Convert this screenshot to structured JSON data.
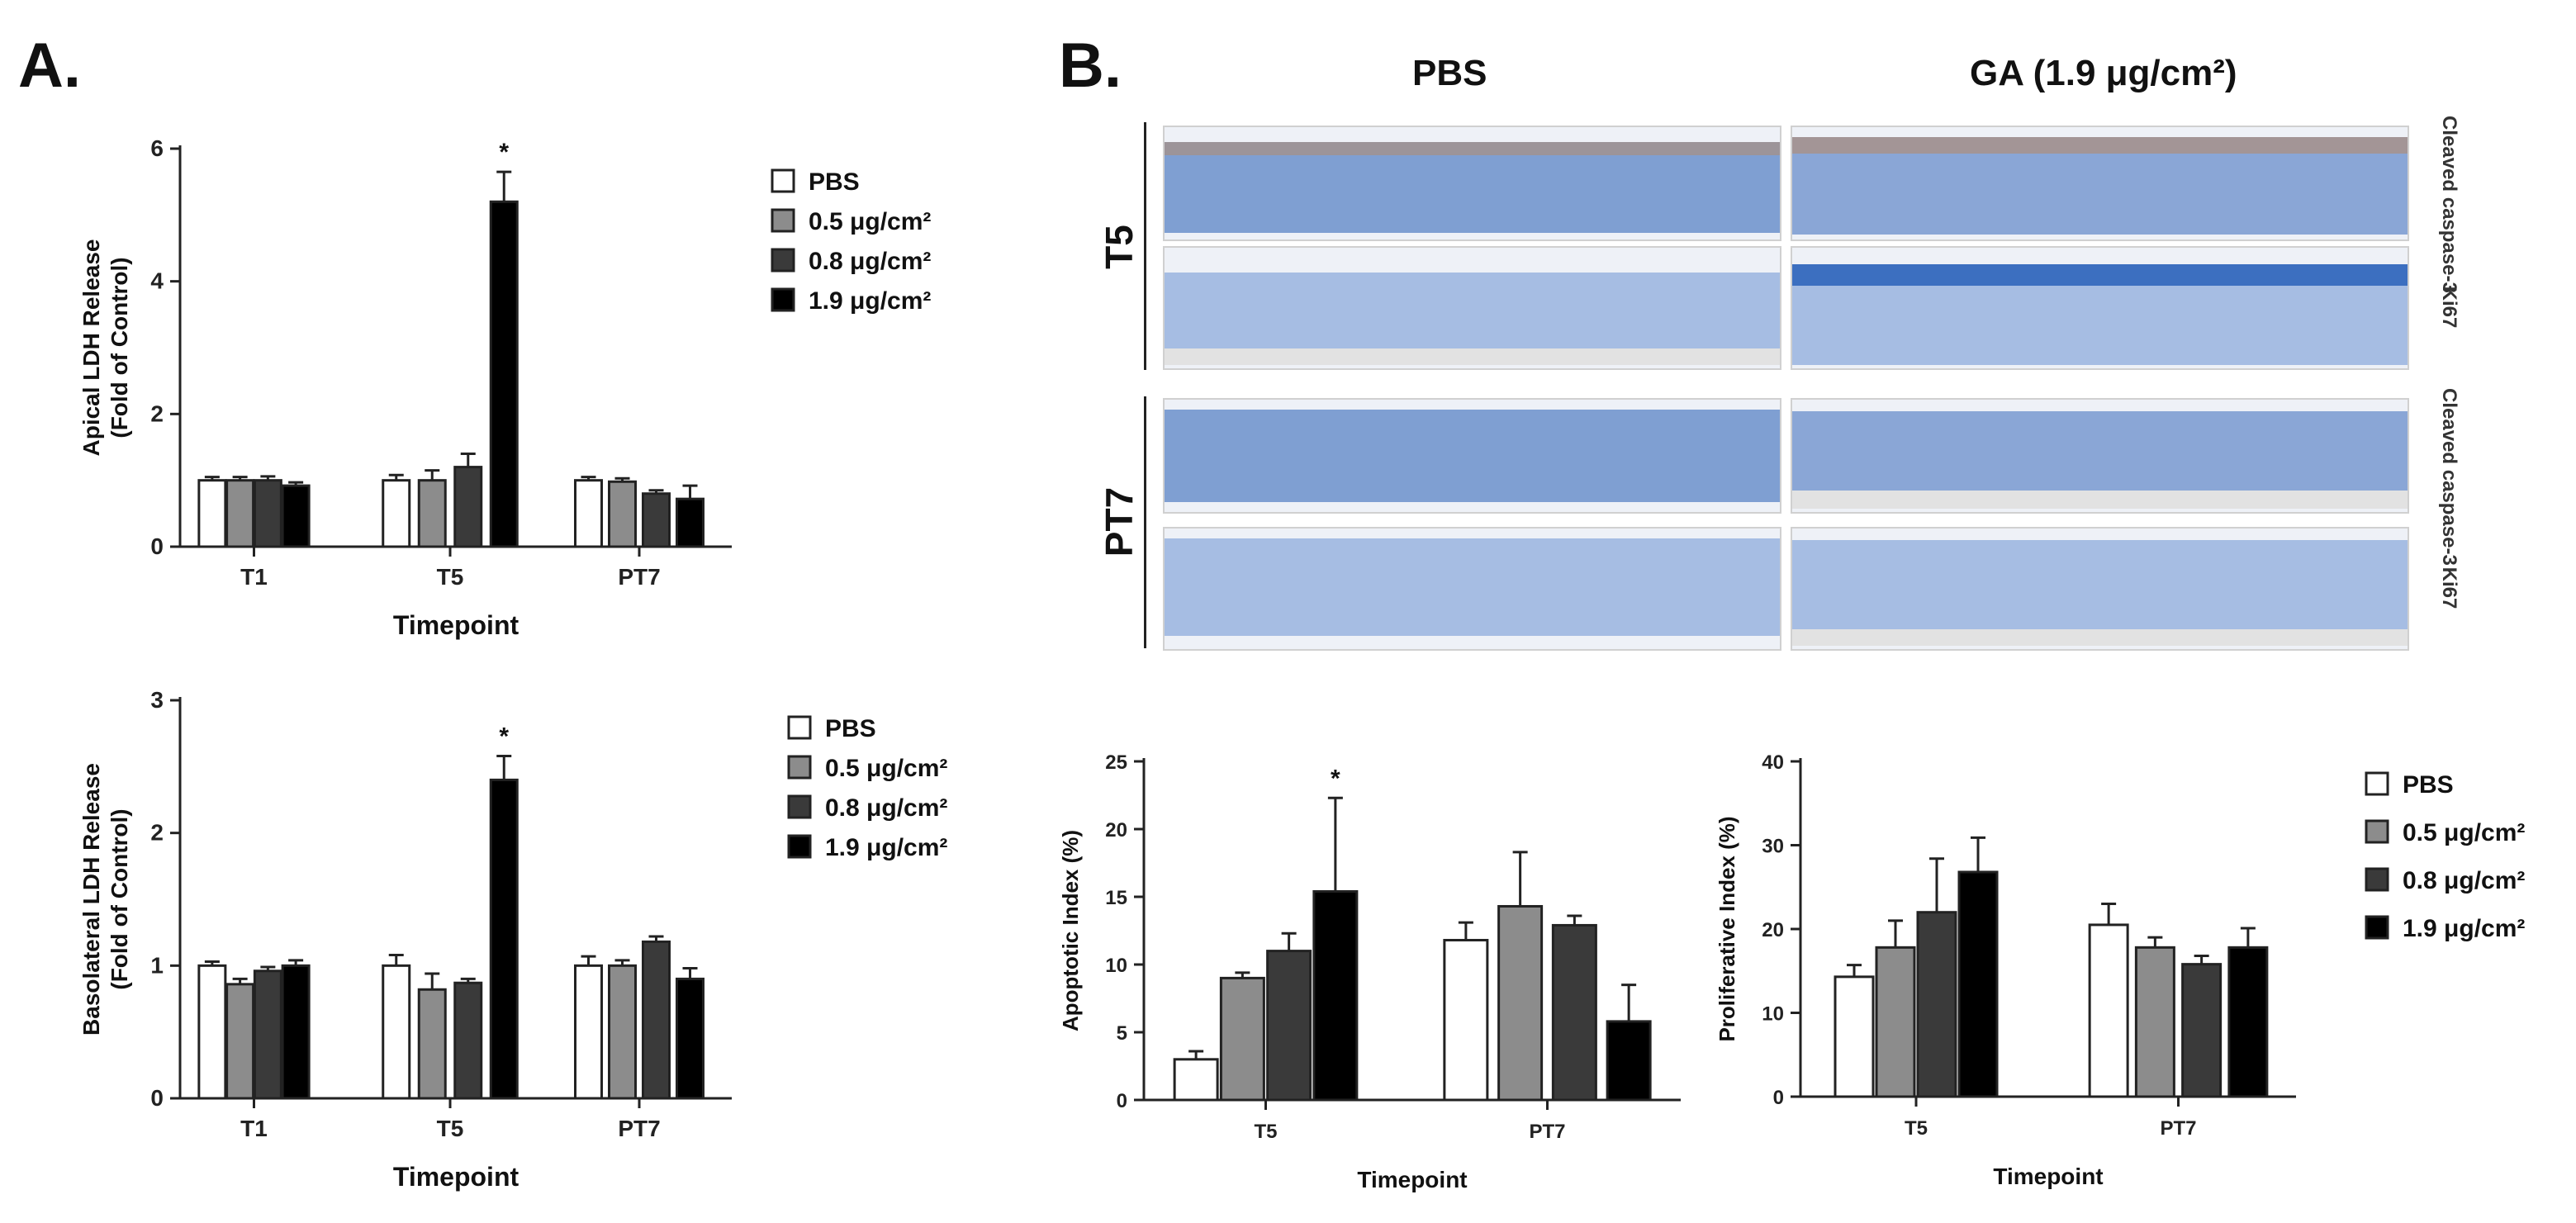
{
  "panel_labels": {
    "a": "A.",
    "b": "B."
  },
  "micrograph": {
    "col_titles": [
      "PBS",
      "GA (1.9 μg/cm²)"
    ],
    "row_groups": [
      "T5",
      "PT7"
    ],
    "stains": [
      "Cleaved caspase-3",
      "Ki67"
    ]
  },
  "colors": {
    "PBS": "#ffffff",
    "0.5": "#8c8c8c",
    "0.8": "#3a3a3a",
    "1.9": "#000000",
    "axis": "#222222"
  },
  "chart_data": [
    {
      "type": "bar",
      "categories": [
        "T1",
        "T5",
        "PT7"
      ],
      "xlabel": "Timepoint",
      "ylabel": "Apical LDH Release (Fold of Control)",
      "ylim": [
        0,
        6
      ],
      "yticks": [
        0,
        2,
        4,
        6
      ],
      "legend_position": "right",
      "series": [
        {
          "name": "PBS",
          "values": [
            1.0,
            1.0,
            1.0
          ],
          "errors": [
            0.05,
            0.08,
            0.05
          ]
        },
        {
          "name": "0.5 μg/cm²",
          "values": [
            1.0,
            1.0,
            0.98
          ],
          "errors": [
            0.05,
            0.15,
            0.05
          ]
        },
        {
          "name": "0.8 μg/cm²",
          "values": [
            1.0,
            1.2,
            0.8
          ],
          "errors": [
            0.06,
            0.2,
            0.05
          ]
        },
        {
          "name": "1.9 μg/cm²",
          "values": [
            0.92,
            5.2,
            0.72
          ],
          "errors": [
            0.05,
            0.45,
            0.2
          ]
        }
      ],
      "annotations": [
        {
          "category": "T5",
          "series": 3,
          "text": "*"
        }
      ]
    },
    {
      "type": "bar",
      "categories": [
        "T1",
        "T5",
        "PT7"
      ],
      "xlabel": "Timepoint",
      "ylabel": "Basolateral LDH Release (Fold of Control)",
      "ylim": [
        0,
        3
      ],
      "yticks": [
        0,
        1,
        2,
        3
      ],
      "legend_position": "right",
      "series": [
        {
          "name": "PBS",
          "values": [
            1.0,
            1.0,
            1.0
          ],
          "errors": [
            0.03,
            0.08,
            0.07
          ]
        },
        {
          "name": "0.5 μg/cm²",
          "values": [
            0.86,
            0.82,
            1.0
          ],
          "errors": [
            0.04,
            0.12,
            0.04
          ]
        },
        {
          "name": "0.8 μg/cm²",
          "values": [
            0.96,
            0.87,
            1.18
          ],
          "errors": [
            0.03,
            0.03,
            0.04
          ]
        },
        {
          "name": "1.9 μg/cm²",
          "values": [
            1.0,
            2.4,
            0.9
          ],
          "errors": [
            0.04,
            0.18,
            0.08
          ]
        }
      ],
      "annotations": [
        {
          "category": "T5",
          "series": 3,
          "text": "*"
        }
      ]
    },
    {
      "type": "bar",
      "categories": [
        "T5",
        "PT7"
      ],
      "xlabel": "Timepoint",
      "ylabel": "Apoptotic Index (%)",
      "ylim": [
        0,
        25
      ],
      "yticks": [
        0,
        5,
        10,
        15,
        20,
        25
      ],
      "series": [
        {
          "name": "PBS",
          "values": [
            3.0,
            11.8
          ],
          "errors": [
            0.6,
            1.3
          ]
        },
        {
          "name": "0.5 μg/cm²",
          "values": [
            9.0,
            14.3
          ],
          "errors": [
            0.4,
            4.0
          ]
        },
        {
          "name": "0.8 μg/cm²",
          "values": [
            11.0,
            12.9
          ],
          "errors": [
            1.3,
            0.7
          ]
        },
        {
          "name": "1.9 μg/cm²",
          "values": [
            15.4,
            5.8
          ],
          "errors": [
            6.9,
            2.7
          ]
        }
      ],
      "annotations": [
        {
          "category": "T5",
          "series": 3,
          "text": "*"
        }
      ]
    },
    {
      "type": "bar",
      "categories": [
        "T5",
        "PT7"
      ],
      "xlabel": "Timepoint",
      "ylabel": "Proliferative Index (%)",
      "ylim": [
        0,
        40
      ],
      "yticks": [
        0,
        10,
        20,
        30,
        40
      ],
      "legend_position": "right",
      "series": [
        {
          "name": "PBS",
          "values": [
            14.3,
            20.5
          ],
          "errors": [
            1.4,
            2.5
          ]
        },
        {
          "name": "0.5 μg/cm²",
          "values": [
            17.8,
            17.8
          ],
          "errors": [
            3.2,
            1.2
          ]
        },
        {
          "name": "0.8 μg/cm²",
          "values": [
            22.0,
            15.8
          ],
          "errors": [
            6.4,
            1.0
          ]
        },
        {
          "name": "1.9 μg/cm²",
          "values": [
            26.8,
            17.8
          ],
          "errors": [
            4.1,
            2.3
          ]
        }
      ]
    }
  ]
}
